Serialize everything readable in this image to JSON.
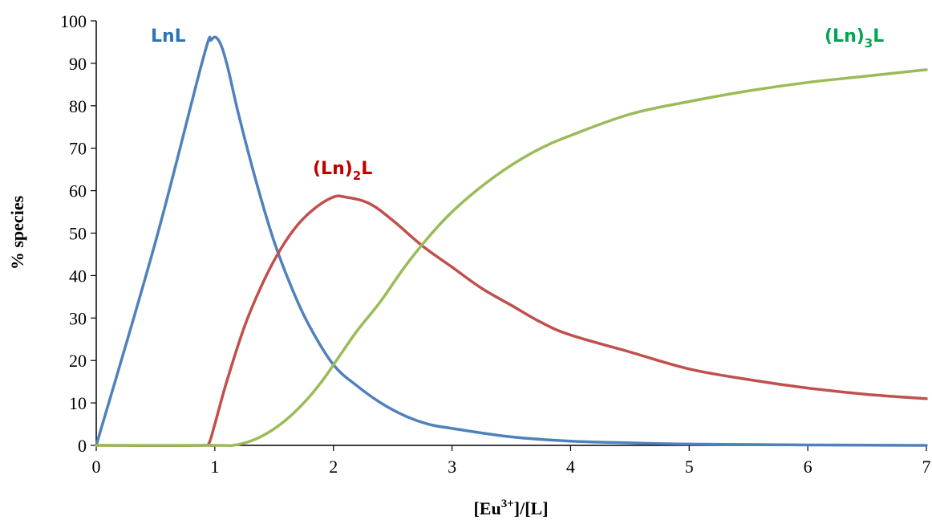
{
  "chart_data": {
    "type": "line",
    "title": "",
    "xlabel": {
      "base": "[Eu",
      "sup": "3+",
      "rest": "]/[L]"
    },
    "ylabel": "% species",
    "xlim": [
      0,
      7
    ],
    "ylim": [
      0,
      100
    ],
    "xticks": [
      0,
      1,
      2,
      3,
      4,
      5,
      6,
      7
    ],
    "yticks": [
      0,
      10,
      20,
      30,
      40,
      50,
      60,
      70,
      80,
      90,
      100
    ],
    "grid": false,
    "legend": "none",
    "series": [
      {
        "label": {
          "pre": "LnL",
          "sub": "",
          "post": ""
        },
        "color": "#4F81BD",
        "label_color": "#2E75B6",
        "points": [
          [
            0,
            0
          ],
          [
            0.5,
            48
          ],
          [
            0.9,
            91
          ],
          [
            0.97,
            95.5
          ],
          [
            1.03,
            95.5
          ],
          [
            1.1,
            90
          ],
          [
            1.2,
            78
          ],
          [
            1.35,
            62
          ],
          [
            1.5,
            48
          ],
          [
            1.65,
            37
          ],
          [
            1.8,
            28
          ],
          [
            2.0,
            19
          ],
          [
            2.2,
            14
          ],
          [
            2.4,
            10
          ],
          [
            2.6,
            7
          ],
          [
            2.8,
            5
          ],
          [
            3.0,
            4
          ],
          [
            3.5,
            2
          ],
          [
            4.0,
            1
          ],
          [
            4.5,
            0.6
          ],
          [
            5.0,
            0.3
          ],
          [
            6.0,
            0.1
          ],
          [
            7.0,
            0
          ]
        ]
      },
      {
        "label": {
          "pre": "(Ln)",
          "sub": "2",
          "post": "L"
        },
        "color": "#C0504D",
        "label_color": "#C00000",
        "points": [
          [
            0,
            0
          ],
          [
            0.9,
            0
          ],
          [
            0.95,
            0.5
          ],
          [
            1.0,
            5
          ],
          [
            1.1,
            15
          ],
          [
            1.25,
            28
          ],
          [
            1.4,
            38
          ],
          [
            1.55,
            46
          ],
          [
            1.7,
            52
          ],
          [
            1.85,
            56
          ],
          [
            2.0,
            58.5
          ],
          [
            2.1,
            58.5
          ],
          [
            2.3,
            57
          ],
          [
            2.5,
            53
          ],
          [
            2.75,
            47
          ],
          [
            3.0,
            42
          ],
          [
            3.25,
            37
          ],
          [
            3.5,
            33
          ],
          [
            3.75,
            29
          ],
          [
            4.0,
            26
          ],
          [
            4.5,
            22
          ],
          [
            5.0,
            18
          ],
          [
            5.5,
            15.5
          ],
          [
            6.0,
            13.5
          ],
          [
            6.5,
            12
          ],
          [
            7.0,
            11
          ]
        ]
      },
      {
        "label": {
          "pre": "(Ln)",
          "sub": "3",
          "post": "L"
        },
        "color": "#9BBB59",
        "label_color": "#00A651",
        "points": [
          [
            0,
            0
          ],
          [
            1.0,
            0
          ],
          [
            1.15,
            0
          ],
          [
            1.3,
            1
          ],
          [
            1.45,
            3
          ],
          [
            1.6,
            6
          ],
          [
            1.75,
            10
          ],
          [
            1.9,
            15
          ],
          [
            2.05,
            21
          ],
          [
            2.2,
            27
          ],
          [
            2.4,
            34
          ],
          [
            2.6,
            42
          ],
          [
            2.8,
            49
          ],
          [
            3.0,
            55
          ],
          [
            3.25,
            61
          ],
          [
            3.5,
            66
          ],
          [
            3.75,
            70
          ],
          [
            4.0,
            73
          ],
          [
            4.5,
            78
          ],
          [
            5.0,
            81
          ],
          [
            5.5,
            83.5
          ],
          [
            6.0,
            85.5
          ],
          [
            6.5,
            87
          ],
          [
            7.0,
            88.5
          ]
        ]
      }
    ]
  }
}
